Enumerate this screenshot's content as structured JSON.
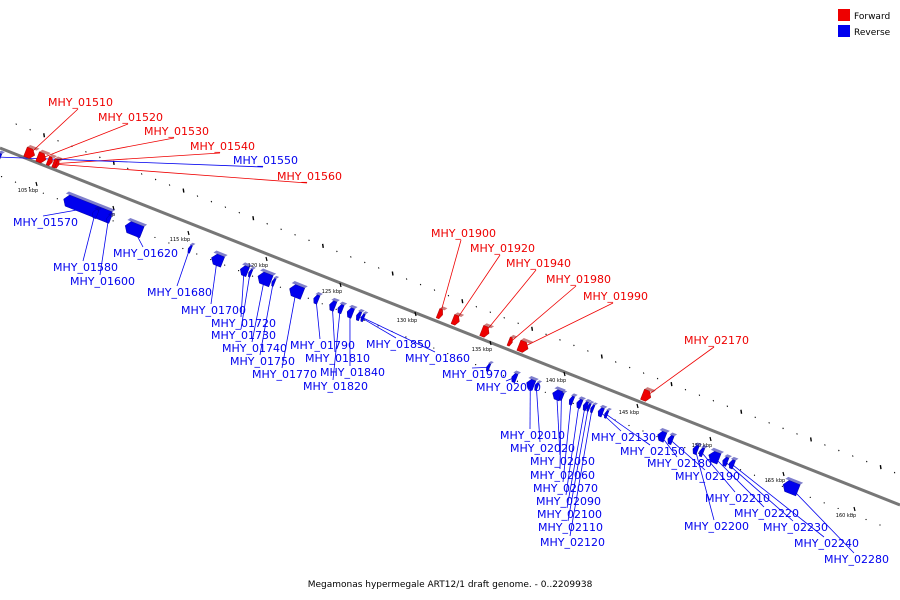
{
  "legend": {
    "forward": {
      "label": "Forward",
      "color": "#ee0000"
    },
    "reverse": {
      "label": "Reverse",
      "color": "#0000ee"
    }
  },
  "caption": "Megamonas hypermegale ART12/1 draft genome. - 0..2209938",
  "scale_ticks": [
    {
      "label": "105 kbp"
    },
    {
      "label": "110 kbp"
    },
    {
      "label": "115 kbp"
    },
    {
      "label": "120 kbp"
    },
    {
      "label": "125 kbp"
    },
    {
      "label": "130 kbp"
    },
    {
      "label": "135 kbp"
    },
    {
      "label": "140 kbp"
    },
    {
      "label": "145 kbp"
    },
    {
      "label": "150 kbp"
    },
    {
      "label": "155 kbp"
    },
    {
      "label": "160 kbp"
    }
  ],
  "genes": [
    {
      "name": "MHY_01510",
      "strand": "forward"
    },
    {
      "name": "MHY_01520",
      "strand": "forward"
    },
    {
      "name": "MHY_01530",
      "strand": "forward"
    },
    {
      "name": "MHY_01540",
      "strand": "forward"
    },
    {
      "name": "MHY_01550",
      "strand": "reverse"
    },
    {
      "name": "MHY_01560",
      "strand": "forward"
    },
    {
      "name": "MHY_01570",
      "strand": "reverse"
    },
    {
      "name": "MHY_01580",
      "strand": "reverse"
    },
    {
      "name": "MHY_01600",
      "strand": "reverse"
    },
    {
      "name": "MHY_01620",
      "strand": "reverse"
    },
    {
      "name": "MHY_01680",
      "strand": "reverse"
    },
    {
      "name": "MHY_01700",
      "strand": "reverse"
    },
    {
      "name": "MHY_01720",
      "strand": "reverse"
    },
    {
      "name": "MHY_01730",
      "strand": "reverse"
    },
    {
      "name": "MHY_01740",
      "strand": "reverse"
    },
    {
      "name": "MHY_01750",
      "strand": "reverse"
    },
    {
      "name": "MHY_01770",
      "strand": "reverse"
    },
    {
      "name": "MHY_01790",
      "strand": "reverse"
    },
    {
      "name": "MHY_01810",
      "strand": "reverse"
    },
    {
      "name": "MHY_01820",
      "strand": "reverse"
    },
    {
      "name": "MHY_01840",
      "strand": "reverse"
    },
    {
      "name": "MHY_01850",
      "strand": "reverse"
    },
    {
      "name": "MHY_01860",
      "strand": "reverse"
    },
    {
      "name": "MHY_01900",
      "strand": "forward"
    },
    {
      "name": "MHY_01920",
      "strand": "forward"
    },
    {
      "name": "MHY_01940",
      "strand": "forward"
    },
    {
      "name": "MHY_01980",
      "strand": "forward"
    },
    {
      "name": "MHY_01990",
      "strand": "forward"
    },
    {
      "name": "MHY_01970",
      "strand": "reverse"
    },
    {
      "name": "MHY_02000",
      "strand": "reverse"
    },
    {
      "name": "MHY_02010",
      "strand": "reverse"
    },
    {
      "name": "MHY_02020",
      "strand": "reverse"
    },
    {
      "name": "MHY_02050",
      "strand": "reverse"
    },
    {
      "name": "MHY_02060",
      "strand": "reverse"
    },
    {
      "name": "MHY_02070",
      "strand": "reverse"
    },
    {
      "name": "MHY_02090",
      "strand": "reverse"
    },
    {
      "name": "MHY_02100",
      "strand": "reverse"
    },
    {
      "name": "MHY_02110",
      "strand": "reverse"
    },
    {
      "name": "MHY_02120",
      "strand": "reverse"
    },
    {
      "name": "MHY_02130",
      "strand": "reverse"
    },
    {
      "name": "MHY_02150",
      "strand": "reverse"
    },
    {
      "name": "MHY_02170",
      "strand": "forward"
    },
    {
      "name": "MHY_02180",
      "strand": "reverse"
    },
    {
      "name": "MHY_02190",
      "strand": "reverse"
    },
    {
      "name": "MHY_02200",
      "strand": "reverse"
    },
    {
      "name": "MHY_02210",
      "strand": "reverse"
    },
    {
      "name": "MHY_02220",
      "strand": "reverse"
    },
    {
      "name": "MHY_02230",
      "strand": "reverse"
    },
    {
      "name": "MHY_02240",
      "strand": "reverse"
    },
    {
      "name": "MHY_02280",
      "strand": "reverse"
    }
  ]
}
